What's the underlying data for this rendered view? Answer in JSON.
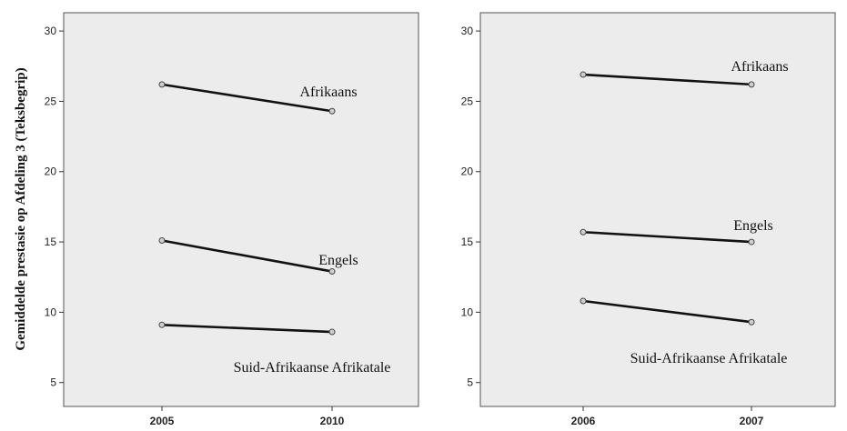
{
  "chart_data": [
    {
      "type": "line",
      "ylabel": "Gemiddelde prestasie op Afdeling 3 (Teksbegrip)",
      "xlabel": "",
      "categories": [
        "2005",
        "2010"
      ],
      "ylim": [
        3.3,
        31.3
      ],
      "yticks": [
        5,
        10,
        15,
        20,
        25,
        30
      ],
      "grid": false,
      "series": [
        {
          "name": "Afrikaans",
          "values": [
            26.2,
            24.3
          ]
        },
        {
          "name": "Engels",
          "values": [
            15.1,
            12.9
          ]
        },
        {
          "name": "Suid-Afrikaanse Afrikatale",
          "values": [
            9.1,
            8.6
          ]
        }
      ]
    },
    {
      "type": "line",
      "ylabel": "",
      "xlabel": "",
      "categories": [
        "2006",
        "2007"
      ],
      "ylim": [
        3.3,
        31.3
      ],
      "yticks": [
        5,
        10,
        15,
        20,
        25,
        30
      ],
      "grid": false,
      "series": [
        {
          "name": "Afrikaans",
          "values": [
            26.9,
            26.2
          ]
        },
        {
          "name": "Engels",
          "values": [
            15.7,
            15.0
          ]
        },
        {
          "name": "Suid-Afrikaanse Afrikatale",
          "values": [
            10.8,
            9.3
          ]
        }
      ]
    }
  ],
  "colors": {
    "plot_background": "#ececec",
    "line": "#111111",
    "marker_fill": "#cfcfcf"
  }
}
